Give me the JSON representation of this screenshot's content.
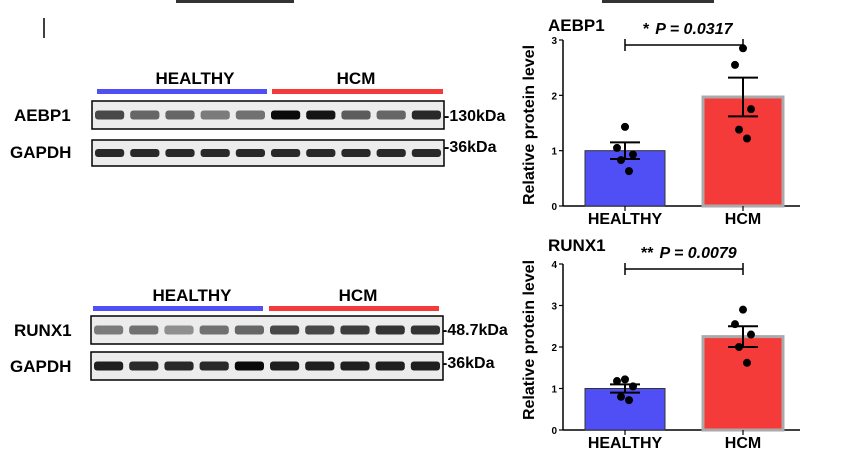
{
  "colors": {
    "healthy": "#4f4ff5",
    "hcm": "#f53a3a",
    "hcm_bar_edge": "#aaaaaa",
    "ink": "#000000"
  },
  "blot_panels": [
    {
      "group_labels": [
        "HEALTHY",
        "HCM"
      ],
      "rows": [
        {
          "protein": "AEBP1",
          "marker": "-130kDa",
          "band_intensities": [
            0.7,
            0.55,
            0.55,
            0.45,
            0.5,
            1.0,
            0.95,
            0.6,
            0.55,
            0.85
          ]
        },
        {
          "protein": "GAPDH",
          "marker": "-36kDa",
          "band_intensities": [
            0.85,
            0.85,
            0.85,
            0.85,
            0.85,
            0.85,
            0.85,
            0.85,
            0.85,
            0.85
          ]
        }
      ]
    },
    {
      "group_labels": [
        "HEALTHY",
        "HCM"
      ],
      "rows": [
        {
          "protein": "RUNX1",
          "marker": "-48.7kDa",
          "band_intensities": [
            0.45,
            0.5,
            0.35,
            0.5,
            0.55,
            0.7,
            0.7,
            0.75,
            0.8,
            0.8
          ]
        },
        {
          "protein": "GAPDH",
          "marker": "-36kDa",
          "band_intensities": [
            0.9,
            0.85,
            0.85,
            0.85,
            1.0,
            0.9,
            0.9,
            0.9,
            0.9,
            0.9
          ]
        }
      ]
    }
  ],
  "chart_data": [
    {
      "type": "bar",
      "title": "AEBP1",
      "categories": [
        "HEALTHY",
        "HCM"
      ],
      "values": [
        1.0,
        1.97
      ],
      "error": [
        0.15,
        0.35
      ],
      "points": [
        [
          1.43,
          1.05,
          0.93,
          0.83,
          0.63
        ],
        [
          2.85,
          2.55,
          1.75,
          1.38,
          1.22
        ]
      ],
      "ylabel": "Relative protein level",
      "ylim": [
        0,
        3
      ],
      "yticks": [
        "0",
        "1",
        "2",
        "3"
      ],
      "significance": {
        "stars": "*",
        "p_label": "P = 0.0317"
      }
    },
    {
      "type": "bar",
      "title": "RUNX1",
      "categories": [
        "HEALTHY",
        "HCM"
      ],
      "values": [
        1.0,
        2.25
      ],
      "error": [
        0.1,
        0.25
      ],
      "points": [
        [
          1.22,
          1.18,
          1.05,
          0.8,
          0.72
        ],
        [
          2.9,
          2.55,
          2.3,
          2.0,
          1.62
        ]
      ],
      "ylabel": "Relative protein level",
      "ylim": [
        0,
        4
      ],
      "yticks": [
        "0",
        "1",
        "2",
        "3",
        "4"
      ],
      "significance": {
        "stars": "**",
        "p_label": "P = 0.0079"
      }
    }
  ]
}
